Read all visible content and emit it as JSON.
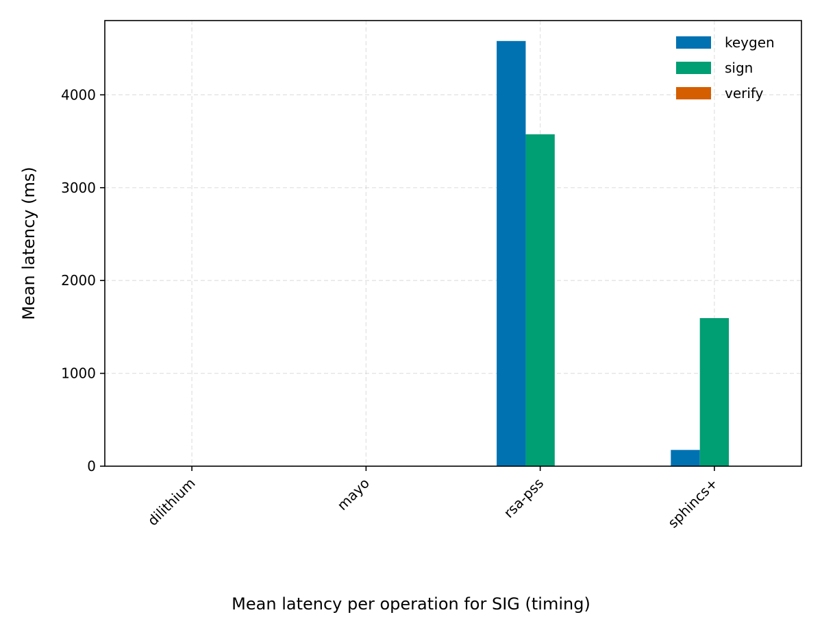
{
  "chart_data": {
    "type": "bar",
    "categories": [
      "dilithium",
      "mayo",
      "rsa-pss",
      "sphincs+"
    ],
    "series": [
      {
        "name": "keygen",
        "color": "#0072b2",
        "values": [
          0.5,
          0.2,
          4580,
          175
        ]
      },
      {
        "name": "sign",
        "color": "#009e73",
        "values": [
          0.8,
          0.4,
          3575,
          1595
        ]
      },
      {
        "name": "verify",
        "color": "#d55e00",
        "values": [
          0.2,
          0.2,
          1.2,
          2
        ]
      }
    ],
    "title": "",
    "caption": "Mean latency per operation for SIG (timing)",
    "xlabel": "",
    "ylabel": "Mean latency (ms)",
    "ylim": [
      0,
      4800
    ],
    "yticks": [
      0,
      1000,
      2000,
      3000,
      4000
    ],
    "grid": true,
    "legend_position": "top-right"
  }
}
